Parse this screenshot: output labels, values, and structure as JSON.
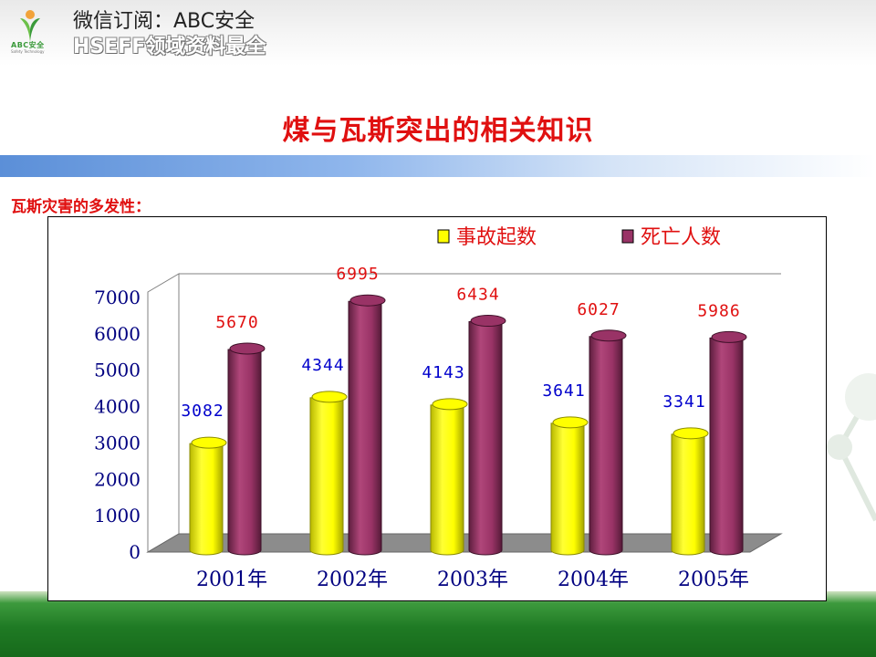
{
  "header": {
    "logo_text": "ABC安全",
    "logo_subtext": "Safety Technology",
    "line1": "微信订阅：ABC安全",
    "line2": "HSEFF领域资料最全"
  },
  "slide": {
    "title": "煤与瓦斯突出的相关知识",
    "subtitle": "瓦斯灾害的多发性："
  },
  "colors": {
    "title_red": "#e01010",
    "series1_yellow": "#ffff00",
    "series2_maroon": "#993366",
    "axis_label_blue": "#000080"
  },
  "chart_data": {
    "type": "bar",
    "style": "3d-cylinder",
    "categories": [
      "2001年",
      "2002年",
      "2003年",
      "2004年",
      "2005年"
    ],
    "series": [
      {
        "name": "事故起数",
        "color": "#ffff00",
        "label_color": "#0000cc",
        "values": [
          3082,
          4344,
          4143,
          3641,
          3341
        ]
      },
      {
        "name": "死亡人数",
        "color": "#993366",
        "label_color": "#e01010",
        "values": [
          5670,
          6995,
          6434,
          6027,
          5986
        ]
      }
    ],
    "y_ticks": [
      "0",
      "1000",
      "2000",
      "3000",
      "4000",
      "5000",
      "6000",
      "7000"
    ],
    "ylim": [
      0,
      7000
    ],
    "grid": false,
    "legend_position": "top"
  }
}
